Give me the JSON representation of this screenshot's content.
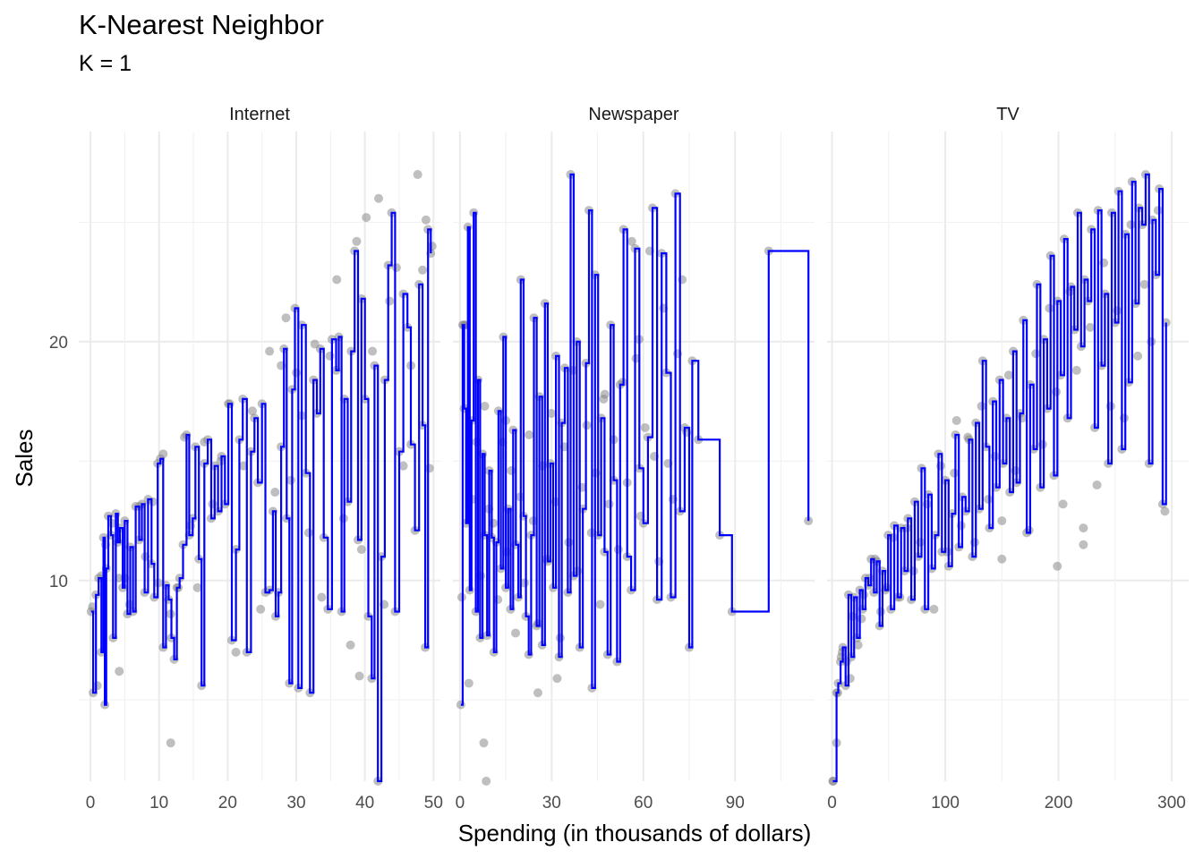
{
  "title": "K-Nearest Neighbor",
  "subtitle": "K = 1",
  "chart_data": {
    "type": "line",
    "title": "K-Nearest Neighbor",
    "subtitle": "K = 1",
    "xlabel": "Spending (in thousands of dollars)",
    "ylabel": "Sales",
    "ylim": [
      1.6,
      28.8
    ],
    "y_ticks": [
      10,
      20
    ],
    "grid": true,
    "line_color": "#0000ff",
    "point_color": "#7f7f7f",
    "facets": [
      {
        "name": "Internet",
        "xlim": [
          -1.7,
          51.0
        ],
        "x_ticks": [
          0,
          10,
          20,
          30,
          40,
          50
        ],
        "x": [
          0.1,
          0.4,
          0.8,
          1.2,
          1.6,
          1.9,
          2.1,
          2.3,
          2.6,
          3.0,
          3.3,
          3.7,
          4.0,
          4.3,
          4.7,
          5.0,
          5.4,
          5.8,
          6.2,
          6.6,
          7.1,
          7.5,
          7.9,
          8.4,
          8.9,
          9.3,
          9.8,
          10.2,
          10.6,
          11.0,
          11.4,
          11.8,
          12.2,
          12.6,
          13.0,
          13.5,
          14.0,
          14.4,
          14.9,
          15.3,
          15.8,
          16.2,
          16.6,
          17.1,
          17.6,
          18.1,
          18.6,
          19.1,
          19.6,
          20.1,
          20.6,
          21.2,
          21.7,
          22.2,
          22.8,
          23.4,
          23.9,
          24.4,
          25.0,
          25.5,
          26.1,
          26.6,
          27.0,
          27.4,
          27.8,
          28.2,
          28.6,
          29.0,
          29.4,
          29.8,
          30.3,
          30.8,
          31.4,
          32.0,
          32.5,
          33.0,
          33.5,
          34.0,
          34.6,
          35.2,
          35.8,
          36.2,
          36.6,
          37.0,
          37.5,
          38.0,
          38.5,
          39.0,
          39.5,
          40.0,
          40.5,
          41.0,
          41.4,
          41.9,
          42.4,
          42.9,
          43.4,
          43.9,
          44.4,
          45.0,
          45.6,
          46.2,
          46.7,
          47.3,
          47.9,
          48.4,
          48.8,
          49.2,
          49.6
        ],
        "y": [
          8.7,
          5.3,
          9.4,
          10.1,
          7.0,
          11.8,
          4.8,
          10.5,
          12.7,
          11.9,
          7.6,
          12.8,
          11.6,
          12.2,
          9.7,
          12.5,
          8.6,
          11.4,
          8.7,
          13.1,
          11.7,
          13.2,
          9.5,
          13.4,
          10.7,
          9.3,
          14.9,
          15.1,
          7.2,
          9.8,
          9.2,
          7.6,
          6.7,
          9.7,
          10.1,
          11.5,
          16.1,
          11.9,
          12.6,
          15.6,
          10.9,
          5.6,
          14.9,
          15.9,
          12.6,
          14.8,
          12.9,
          15.2,
          13.2,
          17.4,
          7.5,
          11.3,
          15.9,
          17.6,
          7.0,
          15.4,
          16.8,
          14.1,
          17.4,
          9.5,
          9.6,
          12.9,
          8.5,
          9.5,
          15.6,
          19.7,
          12.6,
          5.7,
          18.0,
          21.4,
          5.5,
          20.7,
          14.5,
          5.3,
          18.4,
          17.0,
          19.7,
          11.8,
          8.8,
          20.1,
          18.8,
          20.2,
          8.7,
          17.6,
          13.3,
          19.6,
          23.8,
          11.7,
          21.8,
          17.6,
          8.5,
          5.9,
          19.0,
          1.6,
          11.0,
          18.4,
          23.2,
          25.4,
          8.7,
          15.4,
          22.0,
          20.6,
          15.7,
          12.1,
          22.4,
          16.5,
          7.2,
          24.7,
          23.7
        ],
        "points_x": [
          0.3,
          1.0,
          1.6,
          2.2,
          3.2,
          4.2,
          5.0,
          5.7,
          7.1,
          8.0,
          9.1,
          9.9,
          10.6,
          11.7,
          12.8,
          13.7,
          14.6,
          15.6,
          16.6,
          17.8,
          19.0,
          20.3,
          21.2,
          22.3,
          23.6,
          24.8,
          26.1,
          26.9,
          27.8,
          28.5,
          29.2,
          30.0,
          30.8,
          31.8,
          32.7,
          33.7,
          34.9,
          35.9,
          36.9,
          37.9,
          38.8,
          39.5,
          40.2,
          41.1,
          42.0,
          42.8,
          43.6,
          44.6,
          45.6,
          46.7,
          47.7,
          48.4,
          48.9,
          49.4,
          49.8,
          11.7,
          4.2,
          39.2
        ],
        "points_y": [
          8.9,
          5.6,
          10.2,
          11.5,
          12.4,
          6.2,
          10.1,
          9.0,
          13.1,
          11.0,
          13.3,
          9.9,
          15.3,
          8.6,
          9.7,
          16.0,
          12.3,
          9.7,
          15.8,
          13.2,
          15.0,
          17.4,
          7.0,
          14.8,
          17.1,
          8.8,
          19.6,
          13.7,
          19.0,
          21.0,
          14.2,
          18.7,
          16.9,
          12.0,
          19.9,
          9.3,
          19.4,
          22.6,
          12.6,
          7.3,
          24.2,
          11.3,
          25.2,
          19.6,
          26.0,
          9.0,
          21.7,
          23.1,
          14.8,
          19.0,
          27.0,
          23.0,
          25.1,
          14.7,
          24.0,
          3.2,
          10.1,
          6.0
        ]
      },
      {
        "name": "Newspaper",
        "xlim": [
          -2.3,
          116.0
        ],
        "x_ticks": [
          0,
          30,
          60,
          90
        ],
        "x": [
          0.3,
          0.9,
          1.4,
          2.0,
          2.6,
          3.2,
          3.8,
          4.5,
          5.2,
          5.9,
          6.6,
          7.4,
          8.1,
          8.9,
          9.6,
          10.4,
          11.1,
          11.9,
          12.6,
          13.4,
          14.2,
          15.0,
          15.8,
          16.6,
          17.4,
          18.3,
          19.1,
          19.9,
          20.8,
          21.6,
          22.5,
          23.3,
          24.2,
          25.1,
          26.0,
          26.9,
          27.8,
          28.7,
          29.6,
          30.5,
          31.4,
          32.4,
          33.3,
          34.3,
          35.3,
          36.2,
          37.2,
          38.2,
          39.2,
          40.2,
          41.2,
          42.2,
          43.2,
          44.2,
          45.2,
          46.2,
          47.3,
          48.3,
          49.3,
          50.3,
          51.4,
          52.4,
          53.5,
          54.7,
          56.0,
          57.3,
          58.7,
          60.0,
          61.5,
          63.0,
          64.5,
          66.0,
          67.5,
          69.0,
          70.5,
          72.0,
          73.5,
          75.0,
          76.0,
          78.0,
          85.0,
          89.0,
          101.0,
          114.0
        ],
        "y": [
          4.8,
          20.7,
          17.2,
          12.4,
          24.8,
          9.6,
          16.7,
          25.4,
          8.7,
          18.4,
          7.6,
          15.3,
          11.9,
          7.7,
          14.6,
          11.8,
          7.0,
          11.6,
          17.1,
          10.5,
          20.2,
          9.7,
          13.0,
          8.8,
          16.3,
          11.5,
          9.3,
          22.6,
          12.7,
          8.5,
          6.9,
          11.9,
          21.0,
          8.1,
          17.7,
          7.3,
          21.6,
          10.8,
          14.9,
          9.7,
          19.4,
          6.8,
          16.6,
          18.9,
          9.5,
          27.0,
          10.2,
          20.0,
          7.2,
          13.0,
          19.1,
          25.5,
          5.5,
          22.8,
          11.9,
          16.8,
          11.2,
          6.9,
          20.7,
          14.2,
          6.6,
          18.2,
          24.7,
          11.0,
          9.6,
          23.9,
          14.7,
          12.4,
          16.0,
          25.6,
          9.2,
          23.7,
          18.7,
          9.3,
          26.2,
          12.9,
          16.4,
          7.2,
          19.2,
          15.9,
          11.9,
          8.7,
          23.8,
          12.5
        ],
        "points_x": [
          0.6,
          1.7,
          2.9,
          4.1,
          5.4,
          6.8,
          8.1,
          9.5,
          11.0,
          12.4,
          13.9,
          15.3,
          16.8,
          18.2,
          19.7,
          21.1,
          22.6,
          24.0,
          25.5,
          27.0,
          28.4,
          29.9,
          31.3,
          32.8,
          34.2,
          35.6,
          37.1,
          38.5,
          40.0,
          41.5,
          43.0,
          44.4,
          45.9,
          47.4,
          48.8,
          50.3,
          51.8,
          53.2,
          54.7,
          56.2,
          57.6,
          59.1,
          60.6,
          62.1,
          63.6,
          65.1,
          66.6,
          68.1,
          69.7,
          71.2,
          72.7,
          74.2,
          8.6,
          15.0,
          25.5,
          31.8,
          1.3,
          7.8,
          47.0,
          58.6
        ],
        "points_y": [
          9.3,
          20.7,
          5.7,
          13.4,
          15.8,
          10.2,
          17.3,
          13.0,
          12.4,
          9.2,
          15.8,
          11.2,
          14.6,
          7.8,
          13.5,
          9.9,
          16.1,
          12.5,
          8.2,
          14.8,
          10.9,
          17.0,
          13.3,
          7.6,
          15.6,
          11.6,
          18.8,
          10.4,
          13.9,
          16.5,
          12.0,
          14.5,
          9.0,
          17.8,
          13.2,
          15.9,
          11.3,
          18.3,
          14.1,
          24.2,
          19.3,
          12.7,
          16.4,
          23.8,
          15.2,
          10.8,
          21.4,
          14.9,
          13.4,
          19.5,
          22.6,
          16.2,
          1.6,
          16.7,
          5.3,
          5.9,
          20.7,
          3.2,
          17.6,
          20.1
        ]
      },
      {
        "name": "TV",
        "xlim": [
          -4.4,
          315.0
        ],
        "x_ticks": [
          0,
          100,
          200,
          300
        ],
        "x": [
          0.7,
          4.0,
          5.5,
          7.5,
          9.5,
          12.0,
          14.5,
          17.0,
          19.5,
          22.0,
          24.5,
          27.0,
          29.5,
          32.0,
          34.5,
          37.0,
          39.5,
          42.0,
          44.5,
          47.0,
          49.5,
          52.0,
          55.0,
          58.0,
          61.0,
          64.0,
          67.0,
          70.0,
          73.0,
          76.0,
          79.0,
          82.0,
          85.0,
          88.0,
          91.0,
          94.0,
          97.0,
          100.0,
          103.0,
          106.0,
          109.0,
          112.0,
          115.0,
          118.0,
          121.0,
          124.0,
          127.0,
          130.0,
          133.0,
          136.0,
          139.0,
          142.0,
          145.0,
          148.0,
          151.0,
          154.0,
          157.0,
          160.0,
          163.0,
          166.0,
          169.0,
          172.0,
          175.0,
          178.0,
          181.0,
          184.0,
          187.0,
          190.0,
          193.0,
          196.0,
          199.0,
          202.0,
          205.0,
          208.0,
          211.0,
          214.0,
          217.0,
          220.0,
          223.0,
          226.0,
          229.0,
          232.0,
          235.0,
          238.0,
          241.0,
          244.0,
          247.0,
          250.0,
          253.0,
          256.0,
          259.0,
          262.0,
          265.0,
          268.0,
          271.0,
          274.0,
          277.0,
          280.0,
          283.0,
          286.0,
          289.0,
          292.0,
          295.0
        ],
        "y": [
          1.6,
          5.3,
          5.7,
          6.6,
          7.2,
          5.6,
          9.4,
          6.8,
          9.3,
          7.6,
          9.6,
          8.8,
          10.1,
          9.8,
          10.9,
          9.5,
          10.8,
          8.1,
          10.4,
          9.6,
          11.9,
          8.8,
          12.3,
          9.3,
          12.2,
          10.4,
          12.6,
          9.2,
          13.3,
          11.0,
          14.7,
          8.8,
          13.6,
          10.5,
          11.9,
          15.3,
          11.2,
          14.2,
          10.6,
          12.8,
          16.1,
          11.4,
          13.5,
          12.9,
          15.9,
          11.0,
          16.6,
          13.0,
          19.2,
          15.6,
          12.2,
          17.5,
          13.9,
          18.4,
          14.9,
          16.8,
          13.7,
          19.6,
          14.1,
          17.0,
          20.9,
          12.0,
          18.2,
          15.5,
          22.4,
          13.9,
          20.1,
          17.2,
          23.6,
          14.4,
          21.7,
          18.6,
          24.3,
          16.8,
          22.3,
          20.5,
          25.4,
          19.8,
          22.6,
          21.7,
          24.7,
          16.4,
          25.5,
          19.0,
          22.0,
          14.9,
          25.4,
          20.8,
          26.3,
          15.5,
          24.5,
          18.3,
          26.7,
          21.6,
          25.6,
          24.9,
          27.0,
          14.9,
          25.1,
          22.8,
          26.4,
          13.2,
          20.8
        ],
        "points_x": [
          1.0,
          5.0,
          9.0,
          13.0,
          18.0,
          23.0,
          28.0,
          33.0,
          38.0,
          43.0,
          48.0,
          54.0,
          60.0,
          66.0,
          72.0,
          78.0,
          84.0,
          90.0,
          96.0,
          102.0,
          108.0,
          114.0,
          120.0,
          126.0,
          132.0,
          138.0,
          144.0,
          150.0,
          156.0,
          162.0,
          168.0,
          174.0,
          180.0,
          186.0,
          192.0,
          198.0,
          204.0,
          210.0,
          216.0,
          222.0,
          228.0,
          234.0,
          240.0,
          246.0,
          252.0,
          258.0,
          264.0,
          270.0,
          276.0,
          282.0,
          288.0,
          294.0,
          4.0,
          8.0,
          16.0,
          26.0,
          110.0,
          150.0,
          199.0,
          222.0
        ],
        "points_y": [
          1.6,
          5.3,
          7.0,
          6.6,
          8.5,
          7.3,
          9.4,
          10.1,
          10.9,
          8.7,
          9.7,
          11.8,
          9.3,
          12.2,
          10.4,
          11.6,
          13.2,
          8.8,
          14.8,
          11.2,
          14.5,
          12.3,
          16.0,
          11.6,
          17.3,
          13.4,
          15.2,
          12.5,
          18.6,
          14.6,
          16.8,
          12.1,
          19.5,
          15.7,
          21.4,
          17.9,
          13.2,
          22.1,
          18.8,
          11.5,
          20.6,
          14.0,
          23.3,
          17.3,
          21.3,
          16.8,
          24.9,
          19.4,
          22.4,
          20.0,
          25.5,
          12.9,
          3.2,
          6.8,
          5.9,
          8.4,
          16.7,
          10.9,
          10.6,
          12.2
        ]
      }
    ]
  }
}
